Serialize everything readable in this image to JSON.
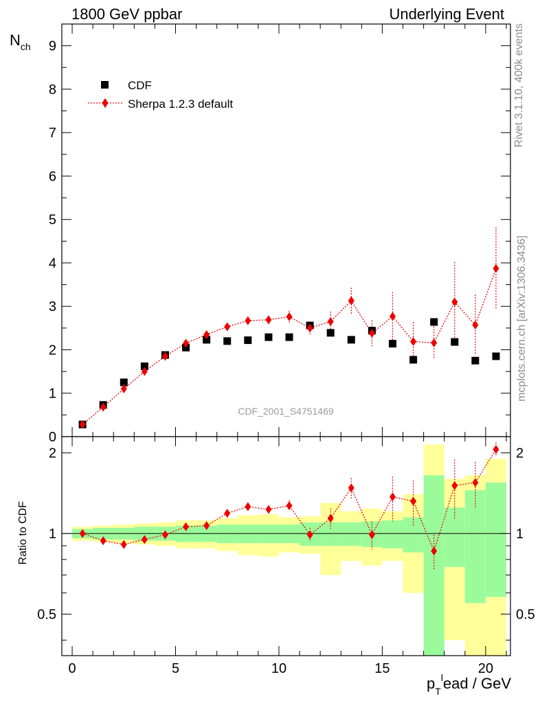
{
  "header": {
    "left": "1800 GeV ppbar",
    "right": "Underlying Event"
  },
  "side_text": {
    "rivet": "Rivet 3.1.10,  400k events",
    "mcplots": "mcplots.cern.ch [arXiv:1306.3436]"
  },
  "watermark": "CDF_2001_S4751469",
  "colors": {
    "data": "#000000",
    "mc": "#ee0000",
    "band_inner": "#9bfb9b",
    "band_outer": "#ffff99",
    "axis": "#000000"
  },
  "chart_data": [
    {
      "type": "scatter",
      "panel": "main",
      "ylabel": "N_ch",
      "ylim": [
        0,
        9.5
      ],
      "xlim": [
        -0.5,
        21.2
      ],
      "y_ticks": [
        0,
        1,
        2,
        3,
        4,
        5,
        6,
        7,
        8,
        9
      ],
      "legend_position": "top-left",
      "series": [
        {
          "name": "CDF",
          "marker": "square",
          "x": [
            0.5,
            1.5,
            2.5,
            3.5,
            4.5,
            5.5,
            6.5,
            7.5,
            8.5,
            9.5,
            10.5,
            11.5,
            12.5,
            13.5,
            14.5,
            15.5,
            16.5,
            17.5,
            18.5,
            19.5,
            20.5
          ],
          "y": [
            0.28,
            0.73,
            1.25,
            1.62,
            1.88,
            2.05,
            2.23,
            2.2,
            2.22,
            2.29,
            2.29,
            2.56,
            2.39,
            2.23,
            2.44,
            2.14,
            1.77,
            2.64,
            2.18,
            1.75,
            1.85
          ]
        },
        {
          "name": "Sherpa 1.2.3 default",
          "marker": "diamond",
          "x": [
            0.5,
            1.5,
            2.5,
            3.5,
            4.5,
            5.5,
            6.5,
            7.5,
            8.5,
            9.5,
            10.5,
            11.5,
            12.5,
            13.5,
            14.5,
            15.5,
            16.5,
            17.5,
            18.5,
            19.5,
            20.5
          ],
          "y": [
            0.28,
            0.68,
            1.1,
            1.5,
            1.85,
            2.15,
            2.35,
            2.53,
            2.67,
            2.69,
            2.76,
            2.5,
            2.65,
            3.13,
            2.38,
            2.77,
            2.19,
            2.16,
            3.1,
            2.57,
            3.87
          ],
          "yerr": [
            0.0,
            0.0,
            0.0,
            0.0,
            0.0,
            0.0,
            0.0,
            0.0,
            0.05,
            0.1,
            0.14,
            0.14,
            0.23,
            0.3,
            0.3,
            0.56,
            0.45,
            0.38,
            0.92,
            0.7,
            0.95
          ]
        }
      ]
    },
    {
      "type": "scatter",
      "panel": "ratio",
      "xlabel": "p_T^lead / GeV",
      "ylabel": "Ratio to CDF",
      "ylim": [
        0.35,
        2.3
      ],
      "xlim": [
        -0.5,
        21.2
      ],
      "y_ticks": [
        0.5,
        1,
        2
      ],
      "x_ticks": [
        0,
        5,
        10,
        15,
        20
      ],
      "reference_line": 1,
      "bands": {
        "x_low": [
          0,
          1,
          2,
          3,
          4,
          5,
          6,
          7,
          8,
          9,
          10,
          11,
          12,
          13,
          14,
          15,
          16,
          17,
          18,
          19,
          20
        ],
        "x_high": [
          1,
          2,
          3,
          4,
          5,
          6,
          7,
          8,
          9,
          10,
          11,
          12,
          13,
          14,
          15,
          16,
          17,
          18,
          19,
          20,
          21
        ],
        "inner_low": [
          0.96,
          0.95,
          0.95,
          0.94,
          0.94,
          0.93,
          0.93,
          0.92,
          0.92,
          0.92,
          0.92,
          0.9,
          0.9,
          0.9,
          0.89,
          0.88,
          0.85,
          0.35,
          0.75,
          0.55,
          0.58
        ],
        "inner_high": [
          1.04,
          1.05,
          1.05,
          1.06,
          1.06,
          1.07,
          1.07,
          1.08,
          1.08,
          1.08,
          1.08,
          1.1,
          1.1,
          1.1,
          1.11,
          1.12,
          1.15,
          1.65,
          1.25,
          1.45,
          1.55
        ],
        "outer_low": [
          0.94,
          0.93,
          0.92,
          0.91,
          0.9,
          0.88,
          0.88,
          0.86,
          0.83,
          0.82,
          0.85,
          0.84,
          0.7,
          0.79,
          0.76,
          0.79,
          0.6,
          0.35,
          0.4,
          0.35,
          0.35
        ],
        "outer_high": [
          1.06,
          1.07,
          1.08,
          1.09,
          1.1,
          1.12,
          1.12,
          1.14,
          1.17,
          1.18,
          1.15,
          1.16,
          1.3,
          1.21,
          1.24,
          1.21,
          1.4,
          2.15,
          1.6,
          1.65,
          1.9
        ]
      },
      "series": [
        {
          "name": "Sherpa 1.2.3 default",
          "marker": "diamond",
          "x": [
            0.5,
            1.5,
            2.5,
            3.5,
            4.5,
            5.5,
            6.5,
            7.5,
            8.5,
            9.5,
            10.5,
            11.5,
            12.5,
            13.5,
            14.5,
            15.5,
            16.5,
            17.5,
            18.5,
            19.5,
            20.5
          ],
          "y": [
            1.0,
            0.94,
            0.91,
            0.95,
            0.99,
            1.06,
            1.07,
            1.19,
            1.26,
            1.23,
            1.27,
            0.99,
            1.14,
            1.48,
            0.99,
            1.37,
            1.32,
            0.86,
            1.51,
            1.55,
            2.06
          ],
          "yerr": [
            0.0,
            0.0,
            0.0,
            0.0,
            0.0,
            0.0,
            0.0,
            0.0,
            0.02,
            0.04,
            0.06,
            0.06,
            0.1,
            0.13,
            0.12,
            0.26,
            0.26,
            0.13,
            0.38,
            0.3,
            0.12
          ]
        }
      ]
    }
  ]
}
